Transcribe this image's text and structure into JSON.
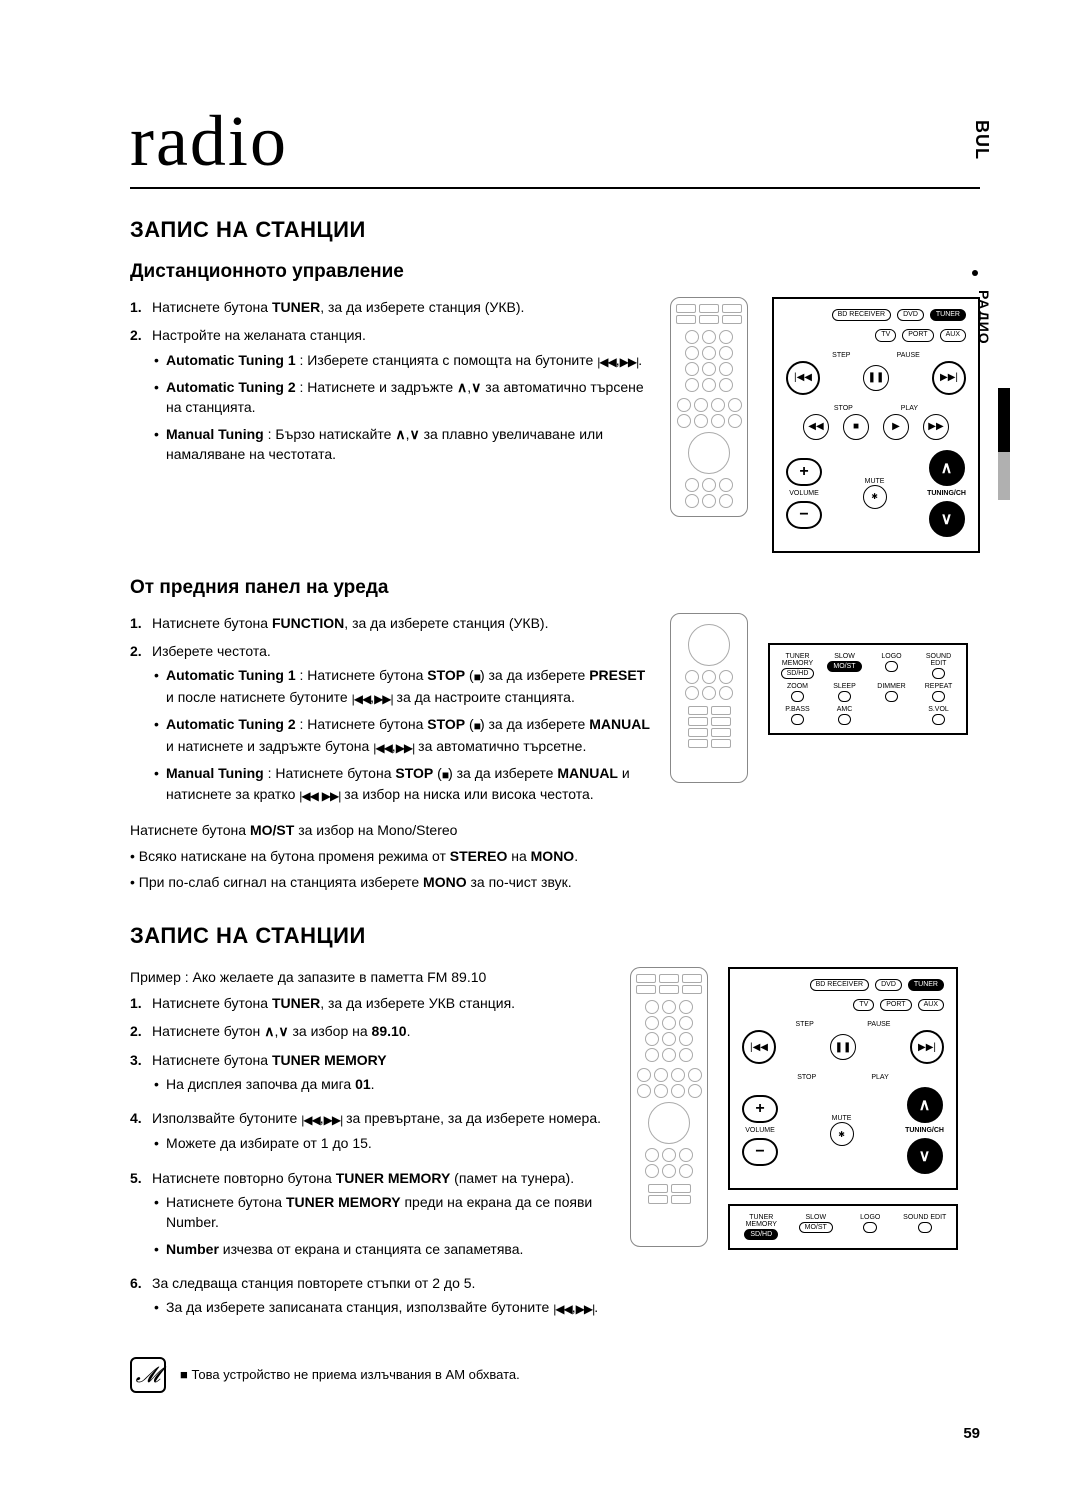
{
  "page_title": "radio",
  "side_tab_top": "BUL",
  "side_tab_label": "РАДИО",
  "page_number": "59",
  "section1": {
    "title": "ЗАПИС НА СТАНЦИИ",
    "sub1": {
      "title": "Дистанционното управление",
      "items": [
        {
          "num": "1.",
          "html": "Натиснете бутона <b>TUNER</b>, за да изберете станция (УКВ)."
        },
        {
          "num": "2.",
          "html": "Настройте на желаната станция.",
          "sub": [
            "<b>Automatic Tuning 1</b> : Изберете станцията с помощта на бутоните <span class='icon-inline'>|◀◀</span>,<span class='icon-inline'>▶▶|</span>.",
            "<b>Automatic Tuning 2</b> : Натиснете и задръжте <b>∧</b>,<b>∨</b> за автоматично търсене на станцията.",
            "<b>Manual Tuning</b> : Бързо натискайте <b>∧</b>,<b>∨</b> за плавно увеличаване или намаляване на честотата."
          ]
        }
      ]
    },
    "sub2": {
      "title": "От предния панел на уреда",
      "items": [
        {
          "num": "1.",
          "html": "Натиснете бутона <b>FUNCTION</b>, за да изберете станция (УКВ)."
        },
        {
          "num": "2.",
          "html": "Изберете честота.",
          "sub": [
            "<b>Automatic Tuning 1</b> : Натиснете бутона <b>STOP</b> (<span class='icon-inline'>■</span>) за да изберете <b>PRESET</b> и после натиснете бутоните <span class='icon-inline'>|◀◀</span>,<span class='icon-inline'>▶▶|</span> за да настроите станцията.",
            "<b>Automatic Tuning 2</b> : Натиснете бутона <b>STOP</b> (<span class='icon-inline'>■</span>) за да изберете <b>MANUAL</b> и натиснете и задръжте бутона <span class='icon-inline'>|◀◀</span>,<span class='icon-inline'>▶▶|</span> за автоматично търсетне.",
            "<b>Manual Tuning</b> : Натиснете бутона <b>STOP</b> (<span class='icon-inline'>■</span>) за да изберете <b>MANUAL</b> и натиснете за кратко <span class='icon-inline'>|◀◀</span> <span class='icon-inline'>▶▶|</span> за избор на ниска или висока честота."
          ]
        }
      ],
      "after": [
        "Натиснете бутона <b>MO/ST</b> за избор на Mono/Stereo",
        "• Всяко натискане на бутона променя режима от <b>STEREO</b> на <b>MONO</b>.",
        "• При по-слаб сигнал на станцията изберете <b>MONO</b> за по-чист звук."
      ]
    }
  },
  "section2": {
    "title": "ЗАПИС НА СТАНЦИИ",
    "intro": "Пример : Ако желаете да запазите в паметта FM 89.10",
    "items": [
      {
        "num": "1.",
        "html": "Натиснете бутона <b>TUNER</b>, за да изберете УКВ станция."
      },
      {
        "num": "2.",
        "html": "Натиснете бутон <b>∧</b>,<b>∨</b> за избор на <b>89.10</b>."
      },
      {
        "num": "3.",
        "html": "Натиснете бутона <b>TUNER MEMORY</b>",
        "sub": [
          "На дисплея започва да мига <b>01</b>."
        ]
      },
      {
        "num": "4.",
        "html": "Използвайте бутоните <span class='icon-inline'>|◀◀</span>,<span class='icon-inline'>▶▶|</span> за превъртане, за да изберете номера.",
        "sub": [
          "Можете да избирате от 1 до 15."
        ]
      },
      {
        "num": "5.",
        "html": "Натиснете повторно бутона <b>TUNER MEMORY</b> (памет на тунера).",
        "sub": [
          "Натиснете бутона <b>TUNER MEMORY</b> преди на екрана да се появи Number.",
          "<b>Number</b> изчезва от екрана и станцията се запаметява."
        ]
      },
      {
        "num": "6.",
        "html": "За следваща станция повторете стъпки от 2 до 5.",
        "sub": [
          "За да изберете записаната станция, използвайте бутоните <span class='icon-inline'>|◀◀</span>,<span class='icon-inline'>▶▶|</span>."
        ]
      }
    ]
  },
  "note": "Това устройство не приема излъчвания в AM обхвата.",
  "panel": {
    "top_buttons": [
      "BD RECEIVER",
      "DVD",
      "TUNER"
    ],
    "row2_buttons": [
      "TV",
      "PORT",
      "AUX"
    ],
    "step": "STEP",
    "pause": "PAUSE",
    "stop": "STOP",
    "play": "PLAY",
    "mute": "MUTE",
    "volume": "VOLUME",
    "tuning": "TUNING/CH"
  },
  "small_panel": {
    "row1": [
      "TUNER MEMORY",
      "SLOW",
      "LOGO",
      "SOUND EDIT"
    ],
    "pills1": [
      "SD/HD",
      "MO/ST",
      "",
      ""
    ],
    "row2": [
      "ZOOM",
      "SLEEP",
      "DIMMER",
      "REPEAT"
    ],
    "row3": [
      "P.BASS",
      "AMC",
      "",
      "S.VOL"
    ]
  }
}
